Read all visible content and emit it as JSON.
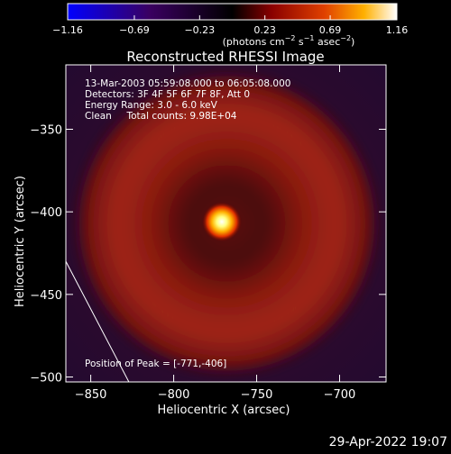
{
  "chart_data": {
    "type": "heatmap",
    "title": "Reconstructed RHESSI Image",
    "xlabel": "Heliocentric X (arcsec)",
    "ylabel": "Heliocentric Y (arcsec)",
    "xlim": [
      -865,
      -672
    ],
    "ylim": [
      -503,
      -311
    ],
    "x_ticks": [
      -850,
      -800,
      -750,
      -700
    ],
    "y_ticks": [
      -350,
      -400,
      -450,
      -500
    ],
    "x_tick_labels": [
      "−850",
      "−800",
      "−750",
      "−700"
    ],
    "y_tick_labels": [
      "−350",
      "−400",
      "−450",
      "−500"
    ],
    "colorbar": {
      "range": [
        -1.16,
        1.16
      ],
      "ticks": [
        -1.16,
        -0.69,
        -0.23,
        0.23,
        0.69,
        1.16
      ],
      "tick_labels": [
        "−1.16",
        "−0.69",
        "−0.23",
        "0.23",
        "0.69",
        "1.16"
      ],
      "unit_main": "(photons cm",
      "unit_sup1": "−2",
      "unit_mid": " s",
      "unit_sup2": "−1",
      "unit_mid2": " asec",
      "unit_sup3": "−2",
      "unit_end": ")"
    },
    "source": {
      "x": -771,
      "y": -406,
      "peak": 1.16
    },
    "ring": {
      "center_x": -768,
      "center_y": -407,
      "radius": 62,
      "level": 0.35
    },
    "limb_line": [
      [
        -865,
        -430
      ],
      [
        -827,
        -503
      ]
    ],
    "annotations": [
      "13-Mar-2003 05:59:08.000 to 06:05:08.000",
      "Detectors: 3F 4F 5F 6F 7F 8F, Att 0",
      "Energy Range: 3.0 - 6.0 keV",
      "Clean     Total counts: 9.98E+04"
    ],
    "peak_label": "Position of Peak = [-771,-406]"
  },
  "footer": {
    "date": "29-Apr-2022 19:07"
  }
}
